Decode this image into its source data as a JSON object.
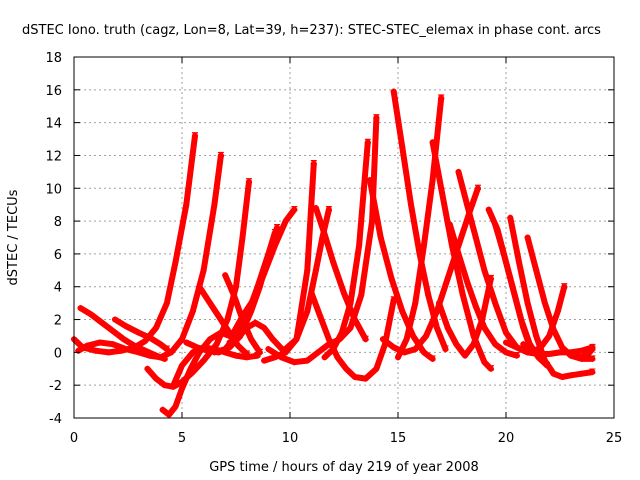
{
  "chart_data": {
    "type": "scatter",
    "title": "dSTEC Iono. truth (cagz, Lon=8, Lat=39, h=237): STEC-STEC_elemax in phase cont. arcs",
    "xlabel": "GPS time / hours of day 219 of year 2008",
    "ylabel": "dSTEC  / TECUs",
    "xlim": [
      0,
      25
    ],
    "ylim": [
      -4,
      18
    ],
    "xticks": [
      0,
      5,
      10,
      15,
      20,
      25
    ],
    "yticks": [
      -4,
      -2,
      0,
      2,
      4,
      6,
      8,
      10,
      12,
      14,
      16,
      18
    ],
    "grid": true,
    "marker": "plus",
    "color": "#ff0000",
    "series": [
      {
        "x": [
          0.0,
          0.4,
          1.0,
          1.6,
          2.2,
          2.8,
          3.3,
          3.8,
          4.3,
          4.7,
          5.2,
          5.6
        ],
        "y": [
          0.8,
          0.3,
          0.1,
          0.0,
          0.1,
          0.3,
          0.7,
          1.5,
          3.0,
          5.5,
          9.0,
          13.2
        ]
      },
      {
        "x": [
          0.2,
          0.6,
          1.2,
          1.8,
          2.4,
          3.0,
          3.5,
          4.0,
          4.5,
          5.0,
          5.5,
          6.0,
          6.5,
          6.8
        ],
        "y": [
          0.1,
          0.4,
          0.6,
          0.5,
          0.2,
          0.0,
          -0.2,
          -0.3,
          0.0,
          0.8,
          2.5,
          5.0,
          9.0,
          12.0
        ]
      },
      {
        "x": [
          0.3,
          0.8,
          1.3,
          1.8,
          2.3,
          2.8,
          3.3,
          3.8,
          4.2
        ],
        "y": [
          2.7,
          2.3,
          1.8,
          1.3,
          0.8,
          0.4,
          0.1,
          -0.2,
          -0.4
        ]
      },
      {
        "x": [
          1.9,
          2.4,
          3.0,
          3.5,
          4.0,
          4.3
        ],
        "y": [
          2.0,
          1.6,
          1.2,
          0.9,
          0.5,
          0.2
        ]
      },
      {
        "x": [
          3.4,
          3.8,
          4.2,
          4.6,
          5.0,
          5.5,
          6.0,
          6.6,
          7.1,
          7.5,
          7.8,
          8.1
        ],
        "y": [
          -1.0,
          -1.6,
          -2.0,
          -2.1,
          -1.8,
          -1.2,
          -0.5,
          0.5,
          2.0,
          4.0,
          7.0,
          10.4
        ]
      },
      {
        "x": [
          4.1,
          4.4,
          4.7,
          5.0,
          5.4,
          5.8,
          6.3,
          6.8,
          7.2
        ],
        "y": [
          -3.5,
          -3.8,
          -3.3,
          -2.2,
          -1.0,
          0.0,
          0.8,
          1.2,
          1.0
        ]
      },
      {
        "x": [
          4.6,
          5.0,
          5.5,
          6.0,
          6.5,
          7.0,
          7.5,
          8.0,
          8.5
        ],
        "y": [
          -2.0,
          -0.8,
          0.0,
          0.3,
          0.2,
          0.0,
          -0.2,
          -0.3,
          -0.2
        ]
      },
      {
        "x": [
          5.2,
          5.7,
          6.2,
          6.7,
          7.2,
          7.7,
          8.2,
          8.6,
          9.0,
          9.4
        ],
        "y": [
          0.6,
          0.3,
          0.1,
          0.0,
          0.3,
          1.0,
          2.5,
          4.0,
          5.8,
          7.6
        ]
      },
      {
        "x": [
          5.8,
          6.2,
          6.7,
          7.2,
          7.6,
          8.0
        ],
        "y": [
          4.0,
          3.2,
          2.2,
          1.2,
          0.4,
          -0.1
        ]
      },
      {
        "x": [
          6.5,
          7.0,
          7.5,
          8.0,
          8.5,
          9.0,
          9.3
        ],
        "y": [
          0.0,
          0.2,
          1.0,
          2.2,
          4.0,
          6.0,
          7.3
        ]
      },
      {
        "x": [
          7.0,
          7.4,
          7.8,
          8.2,
          8.6
        ],
        "y": [
          4.7,
          3.5,
          2.0,
          0.8,
          0.0
        ]
      },
      {
        "x": [
          7.3,
          7.8,
          8.3,
          8.8,
          9.3,
          9.8,
          10.2
        ],
        "y": [
          1.0,
          2.2,
          3.2,
          4.8,
          6.5,
          8.0,
          8.7
        ]
      },
      {
        "x": [
          7.2,
          7.6,
          8.0,
          8.4,
          8.8,
          9.2,
          9.7,
          10.3,
          10.8,
          11.1
        ],
        "y": [
          0.6,
          0.9,
          1.5,
          1.8,
          1.5,
          0.8,
          0.1,
          0.8,
          5.0,
          11.5
        ]
      },
      {
        "x": [
          8.8,
          9.3,
          9.8,
          10.3,
          10.8,
          11.2,
          11.5,
          11.8
        ],
        "y": [
          -0.5,
          -0.3,
          0.0,
          0.8,
          2.5,
          5.0,
          7.0,
          8.7
        ]
      },
      {
        "x": [
          9.0,
          9.6,
          10.2,
          10.8,
          11.3,
          11.8,
          12.3,
          12.8,
          13.3,
          13.8,
          14.0
        ],
        "y": [
          0.2,
          -0.3,
          -0.6,
          -0.5,
          0.0,
          0.5,
          0.8,
          1.5,
          3.5,
          8.0,
          14.3
        ]
      },
      {
        "x": [
          11.0,
          11.4,
          11.8,
          12.2,
          12.6,
          13.0,
          13.5,
          14.0,
          14.4,
          14.8
        ],
        "y": [
          3.6,
          2.2,
          0.8,
          -0.3,
          -1.0,
          -1.5,
          -1.6,
          -1.0,
          0.5,
          3.2
        ]
      },
      {
        "x": [
          11.2,
          11.6,
          12.0,
          12.5,
          13.0,
          13.5
        ],
        "y": [
          8.8,
          7.2,
          5.5,
          3.6,
          2.0,
          0.8
        ]
      },
      {
        "x": [
          11.6,
          12.0,
          12.4,
          12.8,
          13.2,
          13.6
        ],
        "y": [
          -0.3,
          0.2,
          1.2,
          3.0,
          6.5,
          12.8
        ]
      },
      {
        "x": [
          13.7,
          14.2,
          14.7,
          15.2,
          15.7,
          16.2,
          16.6
        ],
        "y": [
          10.5,
          7.0,
          4.5,
          2.5,
          1.0,
          0.0,
          -0.4
        ]
      },
      {
        "x": [
          14.8,
          15.2,
          15.6,
          16.0,
          16.4,
          16.8,
          17.2
        ],
        "y": [
          15.9,
          12.5,
          9.0,
          6.0,
          3.5,
          1.5,
          0.2
        ]
      },
      {
        "x": [
          15.0,
          15.4,
          15.8,
          16.2,
          16.6,
          17.0
        ],
        "y": [
          -0.3,
          0.8,
          3.0,
          6.5,
          10.5,
          15.5
        ]
      },
      {
        "x": [
          14.3,
          14.8,
          15.3,
          15.8,
          16.3,
          16.8,
          17.3,
          17.8,
          18.3,
          18.7
        ],
        "y": [
          0.8,
          0.3,
          0.0,
          0.2,
          1.0,
          2.5,
          4.5,
          6.5,
          8.5,
          10.0
        ]
      },
      {
        "x": [
          16.6,
          17.0,
          17.5,
          18.0,
          18.5,
          19.0,
          19.3
        ],
        "y": [
          12.8,
          10.0,
          6.5,
          3.5,
          1.0,
          -0.6,
          -1.0
        ]
      },
      {
        "x": [
          16.9,
          17.3,
          17.7,
          18.1,
          18.5,
          18.9,
          19.3
        ],
        "y": [
          3.0,
          1.5,
          0.5,
          -0.2,
          0.5,
          2.0,
          4.5
        ]
      },
      {
        "x": [
          17.4,
          17.8,
          18.2,
          18.6,
          19.0,
          19.5,
          20.0,
          20.5
        ],
        "y": [
          7.8,
          6.0,
          4.3,
          2.8,
          1.5,
          0.5,
          0.0,
          -0.2
        ]
      },
      {
        "x": [
          17.8,
          18.2,
          18.6,
          19.0,
          19.5,
          20.0,
          20.5,
          21.0
        ],
        "y": [
          11.0,
          9.0,
          7.0,
          5.0,
          3.0,
          1.2,
          0.3,
          0.0
        ]
      },
      {
        "x": [
          19.2,
          19.6,
          20.0,
          20.4,
          20.8,
          21.2
        ],
        "y": [
          8.7,
          7.5,
          5.5,
          3.5,
          1.5,
          0.0
        ]
      },
      {
        "x": [
          19.5,
          19.9,
          20.3,
          20.7,
          21.1,
          21.5,
          21.9
        ],
        "y": [
          7.8,
          6.0,
          4.0,
          2.0,
          0.5,
          -0.3,
          -0.8
        ]
      },
      {
        "x": [
          20.2,
          20.6,
          21.0,
          21.4,
          21.8,
          22.2,
          22.6,
          23.0,
          23.5,
          24.0
        ],
        "y": [
          8.2,
          5.5,
          3.0,
          1.0,
          -0.5,
          -1.3,
          -1.5,
          -1.4,
          -1.3,
          -1.2
        ]
      },
      {
        "x": [
          20.0,
          20.5,
          21.0,
          21.5,
          22.0,
          22.5,
          23.0,
          23.5,
          24.0
        ],
        "y": [
          0.6,
          0.3,
          0.0,
          -0.1,
          -0.1,
          0.0,
          0.0,
          0.1,
          0.3
        ]
      },
      {
        "x": [
          21.0,
          21.4,
          21.8,
          22.2,
          22.6,
          23.0,
          23.5,
          24.0
        ],
        "y": [
          7.0,
          5.0,
          3.0,
          1.4,
          0.3,
          -0.2,
          -0.4,
          -0.4
        ]
      },
      {
        "x": [
          20.8,
          21.2,
          21.6,
          22.0,
          22.4,
          22.7
        ],
        "y": [
          0.5,
          0.0,
          0.3,
          1.0,
          2.5,
          4.0
        ]
      },
      {
        "x": [
          23.2,
          23.5,
          23.8,
          24.0
        ],
        "y": [
          -0.2,
          -0.3,
          -0.1,
          0.2
        ]
      }
    ]
  }
}
